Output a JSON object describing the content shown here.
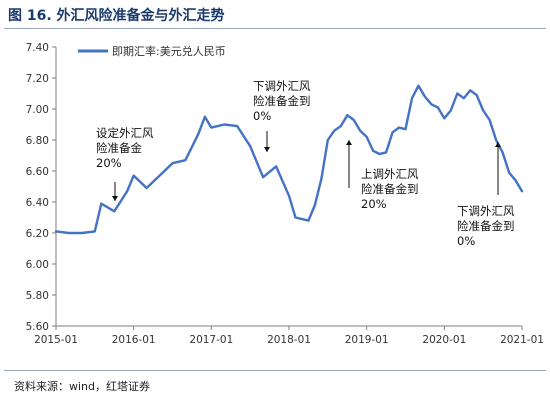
{
  "figure": {
    "title": "图 16. 外汇风险准备金与外汇走势",
    "source": "资料来源：wind，红塔证券"
  },
  "chart_data": {
    "type": "line",
    "title": "",
    "xlabel": "",
    "ylabel": "",
    "ylim": [
      5.6,
      7.4
    ],
    "yticks": [
      "5.60",
      "5.80",
      "6.00",
      "6.20",
      "6.40",
      "6.60",
      "6.80",
      "7.00",
      "7.20",
      "7.40"
    ],
    "xticks": [
      "2015-01",
      "2016-01",
      "2017-01",
      "2018-01",
      "2019-01",
      "2020-01",
      "2021-01"
    ],
    "grid": false,
    "legend": "top-left",
    "series": [
      {
        "name": "即期汇率:美元兑人民币",
        "color": "#4472c4",
        "x": [
          "2015-01",
          "2015-03",
          "2015-05",
          "2015-07",
          "2015-08",
          "2015-10",
          "2015-12",
          "2016-01",
          "2016-03",
          "2016-05",
          "2016-07",
          "2016-09",
          "2016-11",
          "2016-12",
          "2017-01",
          "2017-03",
          "2017-05",
          "2017-07",
          "2017-09",
          "2017-11",
          "2018-01",
          "2018-02",
          "2018-04",
          "2018-05",
          "2018-06",
          "2018-07",
          "2018-08",
          "2018-09",
          "2018-10",
          "2018-11",
          "2018-12",
          "2019-01",
          "2019-02",
          "2019-03",
          "2019-04",
          "2019-05",
          "2019-06",
          "2019-07",
          "2019-08",
          "2019-09",
          "2019-10",
          "2019-11",
          "2019-12",
          "2020-01",
          "2020-02",
          "2020-03",
          "2020-04",
          "2020-05",
          "2020-06",
          "2020-07",
          "2020-08",
          "2020-09",
          "2020-10",
          "2020-11",
          "2020-12",
          "2021-01"
        ],
        "values": [
          6.21,
          6.2,
          6.2,
          6.21,
          6.39,
          6.34,
          6.47,
          6.57,
          6.49,
          6.57,
          6.65,
          6.67,
          6.84,
          6.95,
          6.88,
          6.9,
          6.89,
          6.76,
          6.56,
          6.63,
          6.44,
          6.3,
          6.28,
          6.38,
          6.55,
          6.8,
          6.86,
          6.89,
          6.96,
          6.93,
          6.86,
          6.82,
          6.73,
          6.71,
          6.72,
          6.85,
          6.88,
          6.87,
          7.07,
          7.15,
          7.08,
          7.03,
          7.01,
          6.94,
          6.99,
          7.1,
          7.07,
          7.12,
          7.09,
          6.99,
          6.93,
          6.8,
          6.72,
          6.59,
          6.54,
          6.47
        ]
      }
    ],
    "annotations": [
      {
        "lines": [
          "设定外汇风",
          "险准备金",
          "20%"
        ],
        "arrow": "down"
      },
      {
        "lines": [
          "下调外汇风",
          "险准备金到",
          "0%"
        ],
        "arrow": "down"
      },
      {
        "lines": [
          "上调外汇风",
          "险准备金到",
          "20%"
        ],
        "arrow": "up"
      },
      {
        "lines": [
          "下调外汇风",
          "险准备金到",
          "0%"
        ],
        "arrow": "up"
      }
    ]
  }
}
